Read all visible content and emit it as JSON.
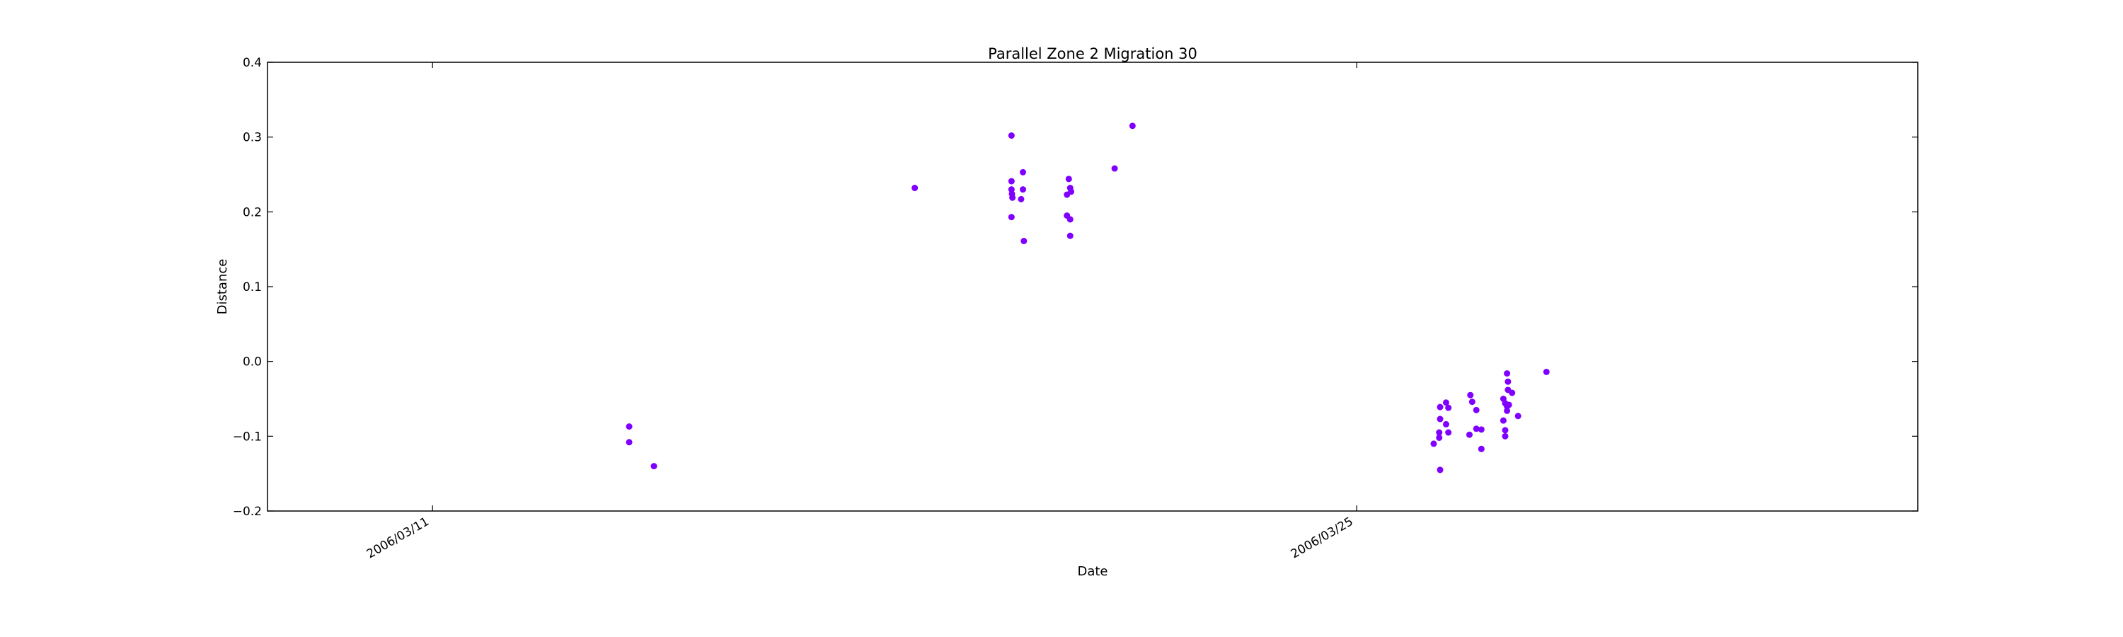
{
  "chart_data": {
    "type": "scatter",
    "title": "Parallel Zone 2 Migration 30",
    "xlabel": "Date",
    "ylabel": "Distance",
    "x_axis_kind": "date",
    "xlim": [
      "2006-03-08 12:00",
      "2006-04-02 12:00"
    ],
    "ylim": [
      -0.2,
      0.4
    ],
    "yticks": [
      -0.2,
      -0.1,
      0.0,
      0.1,
      0.2,
      0.3,
      0.4
    ],
    "ytick_labels": [
      "−0.2",
      "−0.1",
      "0.0",
      "0.1",
      "0.2",
      "0.3",
      "0.4"
    ],
    "xticks": [
      "2006-03-11 00:00",
      "2006-03-25 00:00"
    ],
    "xtick_labels": [
      "2006/03/11",
      "2006/03/25"
    ],
    "grid": false,
    "point_color": "#8000ff",
    "points": [
      {
        "x": "2006-03-13 23:30",
        "y": -0.087
      },
      {
        "x": "2006-03-13 23:30",
        "y": -0.108
      },
      {
        "x": "2006-03-14 08:30",
        "y": -0.14
      },
      {
        "x": "2006-03-18 07:20",
        "y": 0.232
      },
      {
        "x": "2006-03-19 18:30",
        "y": 0.302
      },
      {
        "x": "2006-03-19 18:30",
        "y": 0.241
      },
      {
        "x": "2006-03-19 18:30",
        "y": 0.23
      },
      {
        "x": "2006-03-19 18:40",
        "y": 0.224
      },
      {
        "x": "2006-03-19 18:50",
        "y": 0.219
      },
      {
        "x": "2006-03-19 18:30",
        "y": 0.193
      },
      {
        "x": "2006-03-19 22:40",
        "y": 0.253
      },
      {
        "x": "2006-03-19 22:40",
        "y": 0.23
      },
      {
        "x": "2006-03-19 22:00",
        "y": 0.217
      },
      {
        "x": "2006-03-19 23:00",
        "y": 0.161
      },
      {
        "x": "2006-03-20 15:20",
        "y": 0.244
      },
      {
        "x": "2006-03-20 15:50",
        "y": 0.232
      },
      {
        "x": "2006-03-20 14:40",
        "y": 0.223
      },
      {
        "x": "2006-03-20 16:10",
        "y": 0.227
      },
      {
        "x": "2006-03-20 14:40",
        "y": 0.195
      },
      {
        "x": "2006-03-20 15:50",
        "y": 0.19
      },
      {
        "x": "2006-03-20 15:50",
        "y": 0.168
      },
      {
        "x": "2006-03-21 08:00",
        "y": 0.258
      },
      {
        "x": "2006-03-21 14:30",
        "y": 0.315
      },
      {
        "x": "2006-03-26 04:00",
        "y": -0.11
      },
      {
        "x": "2006-03-26 06:00",
        "y": -0.095
      },
      {
        "x": "2006-03-26 06:00",
        "y": -0.102
      },
      {
        "x": "2006-03-26 06:20",
        "y": -0.077
      },
      {
        "x": "2006-03-26 06:20",
        "y": -0.061
      },
      {
        "x": "2006-03-26 06:20",
        "y": -0.145
      },
      {
        "x": "2006-03-26 08:30",
        "y": -0.055
      },
      {
        "x": "2006-03-26 09:20",
        "y": -0.062
      },
      {
        "x": "2006-03-26 08:30",
        "y": -0.084
      },
      {
        "x": "2006-03-26 09:20",
        "y": -0.095
      },
      {
        "x": "2006-03-26 17:20",
        "y": -0.045
      },
      {
        "x": "2006-03-26 18:00",
        "y": -0.054
      },
      {
        "x": "2006-03-26 19:30",
        "y": -0.065
      },
      {
        "x": "2006-03-26 19:30",
        "y": -0.09
      },
      {
        "x": "2006-03-26 17:00",
        "y": -0.098
      },
      {
        "x": "2006-03-26 21:20",
        "y": -0.091
      },
      {
        "x": "2006-03-26 21:20",
        "y": -0.117
      },
      {
        "x": "2006-03-27 05:20",
        "y": -0.05
      },
      {
        "x": "2006-03-27 05:20",
        "y": -0.079
      },
      {
        "x": "2006-03-27 06:00",
        "y": -0.092
      },
      {
        "x": "2006-03-27 06:00",
        "y": -0.1
      },
      {
        "x": "2006-03-27 06:40",
        "y": -0.016
      },
      {
        "x": "2006-03-27 07:00",
        "y": -0.027
      },
      {
        "x": "2006-03-27 07:00",
        "y": -0.038
      },
      {
        "x": "2006-03-27 06:00",
        "y": -0.056
      },
      {
        "x": "2006-03-27 06:40",
        "y": -0.06
      },
      {
        "x": "2006-03-27 07:20",
        "y": -0.058
      },
      {
        "x": "2006-03-27 06:40",
        "y": -0.066
      },
      {
        "x": "2006-03-27 08:30",
        "y": -0.042
      },
      {
        "x": "2006-03-27 10:40",
        "y": -0.073
      },
      {
        "x": "2006-03-27 21:00",
        "y": -0.014
      }
    ]
  }
}
